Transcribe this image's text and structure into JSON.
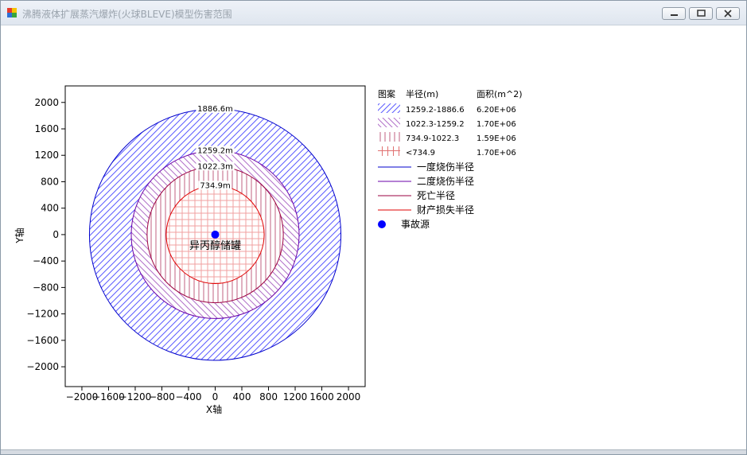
{
  "window": {
    "title": "沸腾液体扩展蒸汽爆炸(火球BLEVE)模型伤害范围",
    "controls": {
      "minimize": "minimize",
      "maximize": "maximize",
      "close": "close"
    }
  },
  "chart_data": {
    "type": "other",
    "title": "",
    "xlabel": "X轴",
    "ylabel": "Y轴",
    "xlim": [
      -2250,
      2250
    ],
    "ylim": [
      -2300,
      2250
    ],
    "xticks": [
      -2000,
      -1600,
      -1200,
      -800,
      -400,
      0,
      400,
      800,
      1200,
      1600,
      2000
    ],
    "yticks": [
      2000,
      1600,
      1200,
      800,
      400,
      0,
      -400,
      -800,
      -1200,
      -1600,
      -2000
    ],
    "xtick_labels": [
      "−2000",
      "−1600",
      "−1200",
      "−800",
      "−400",
      "0",
      "400",
      "800",
      "1200",
      "1600",
      "2000"
    ],
    "ytick_labels": [
      "2000",
      "1600",
      "1200",
      "800",
      "400",
      "0",
      "−400",
      "−800",
      "−1200",
      "−1600",
      "−2000"
    ],
    "grid": false,
    "legend_position": "right",
    "circles": [
      {
        "radius": 1886.6,
        "label": "1886.6m",
        "color": "#0000cc",
        "hatch": "diag",
        "hatch_color": "#5b5bff"
      },
      {
        "radius": 1259.2,
        "label": "1259.2m",
        "color": "#6a00a8",
        "hatch": "back-diag",
        "hatch_color": "#b070c8"
      },
      {
        "radius": 1022.3,
        "label": "1022.3m",
        "color": "#9b0040",
        "hatch": "vert",
        "hatch_color": "#c06080"
      },
      {
        "radius": 734.9,
        "label": "734.9m",
        "color": "#e00000",
        "hatch": "cross",
        "hatch_color": "#f0a0a0"
      }
    ],
    "source": {
      "x": 0,
      "y": 0,
      "label": "异丙醇储罐",
      "color": "#0000ff"
    },
    "legend": {
      "headers": {
        "pattern": "图案",
        "radius": "半径(m)",
        "area": "面积(m^2)"
      },
      "zones": [
        {
          "range": "1259.2-1886.6",
          "area": "6.20E+06",
          "hatch": "diag",
          "color": "#5b5bff"
        },
        {
          "range": "1022.3-1259.2",
          "area": "1.70E+06",
          "hatch": "back-diag",
          "color": "#b070c8"
        },
        {
          "range": "734.9-1022.3",
          "area": "1.59E+06",
          "hatch": "vert",
          "color": "#c06080"
        },
        {
          "range": "<734.9",
          "area": "1.70E+06",
          "hatch": "cross",
          "color": "#e07070"
        }
      ],
      "lines": [
        {
          "label": "一度烧伤半径",
          "color": "#0000cc"
        },
        {
          "label": "二度烧伤半径",
          "color": "#6a00a8"
        },
        {
          "label": "死亡半径",
          "color": "#9b0040"
        },
        {
          "label": "财产损失半径",
          "color": "#e00000"
        }
      ],
      "marker": {
        "label": "事故源",
        "color": "#0000ff"
      }
    }
  }
}
